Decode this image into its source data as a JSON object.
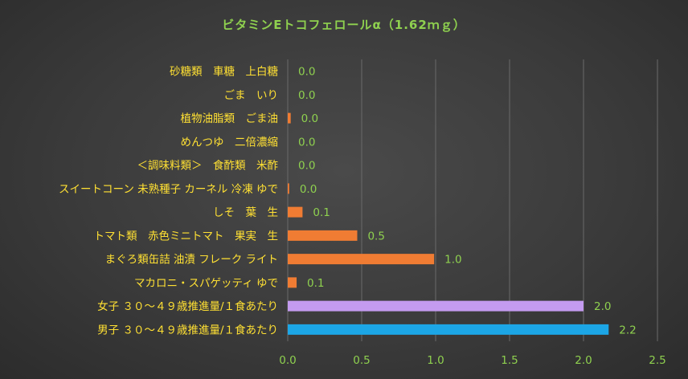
{
  "chart_data": {
    "type": "bar",
    "orientation": "horizontal",
    "title": "ビタミンEトコフェロールα（1.62ｍｇ）",
    "categories": [
      "砂糖類　車糖　上白糖",
      "ごま　いり",
      "植物油脂類　ごま油",
      "めんつゆ　二倍濃縮",
      "＜調味料類＞　食酢類　米酢",
      "スイートコーン 未熟種子 カーネル 冷凍 ゆで",
      "しそ　葉　生",
      "トマト類　赤色ミニトマト　果実　生",
      "まぐろ類缶詰 油漬 フレーク ライト",
      "マカロニ・スパゲッティ ゆで",
      "女子 ３０～４９歳推進量/１食あたり",
      "男子 ３０～４９歳推進量/１食あたり"
    ],
    "values": [
      0.0,
      0.0,
      0.02,
      0.0,
      0.0,
      0.01,
      0.1,
      0.47,
      0.99,
      0.06,
      2.0,
      2.17
    ],
    "value_labels": [
      "0.0",
      "0.0",
      "0.0",
      "0.0",
      "0.0",
      "0.0",
      "0.1",
      "0.5",
      "1.0",
      "0.1",
      "2.0",
      "2.2"
    ],
    "bar_colors": [
      "#f07c33",
      "#f07c33",
      "#f07c33",
      "#f07c33",
      "#f07c33",
      "#f07c33",
      "#f07c33",
      "#f07c33",
      "#f07c33",
      "#f07c33",
      "#c49bf0",
      "#1ca6e6"
    ],
    "xlim": [
      0,
      2.5
    ],
    "xticks": [
      "0.0",
      "0.5",
      "1.0",
      "1.5",
      "2.0",
      "2.5"
    ],
    "grid": true,
    "colors": {
      "title": "#8fd14f",
      "category_text": "#ffe033",
      "value_text": "#8fd14f"
    }
  }
}
